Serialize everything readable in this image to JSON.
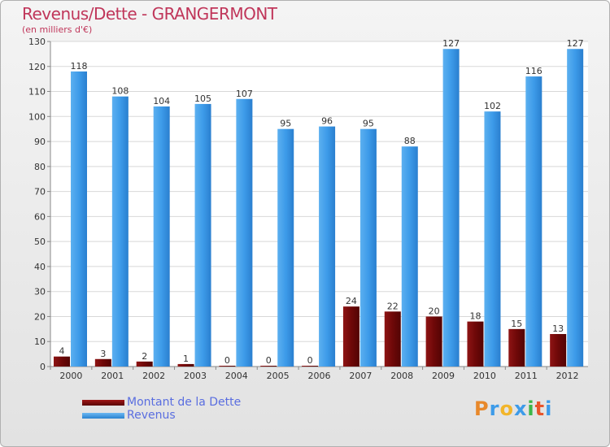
{
  "chart_data": {
    "type": "bar",
    "title": "Revenus/Dette - GRANGERMONT",
    "subtitle": "(en milliers d'€)",
    "categories": [
      "2000",
      "2001",
      "2002",
      "2003",
      "2004",
      "2005",
      "2006",
      "2007",
      "2008",
      "2009",
      "2010",
      "2011",
      "2012"
    ],
    "series": [
      {
        "name": "Montant de la Dette",
        "color": "#7a0a0a",
        "values": [
          4,
          3,
          2,
          1,
          0,
          0,
          0,
          24,
          22,
          20,
          18,
          15,
          13
        ]
      },
      {
        "name": "Revenus",
        "color": "#3d9be9",
        "values": [
          118,
          108,
          104,
          105,
          107,
          95,
          96,
          95,
          88,
          127,
          102,
          116,
          127
        ]
      }
    ],
    "ylim": [
      0,
      130
    ],
    "yticks": [
      0,
      10,
      20,
      30,
      40,
      50,
      60,
      70,
      80,
      90,
      100,
      110,
      120,
      130
    ],
    "grid": true,
    "legend_position": "bottom-left"
  },
  "logo": {
    "text": "Proxiti",
    "colors": [
      "#e8882a",
      "#3d9be9",
      "#f2b52a",
      "#3d9be9",
      "#3cb648",
      "#e8552a",
      "#3d9be9"
    ]
  }
}
